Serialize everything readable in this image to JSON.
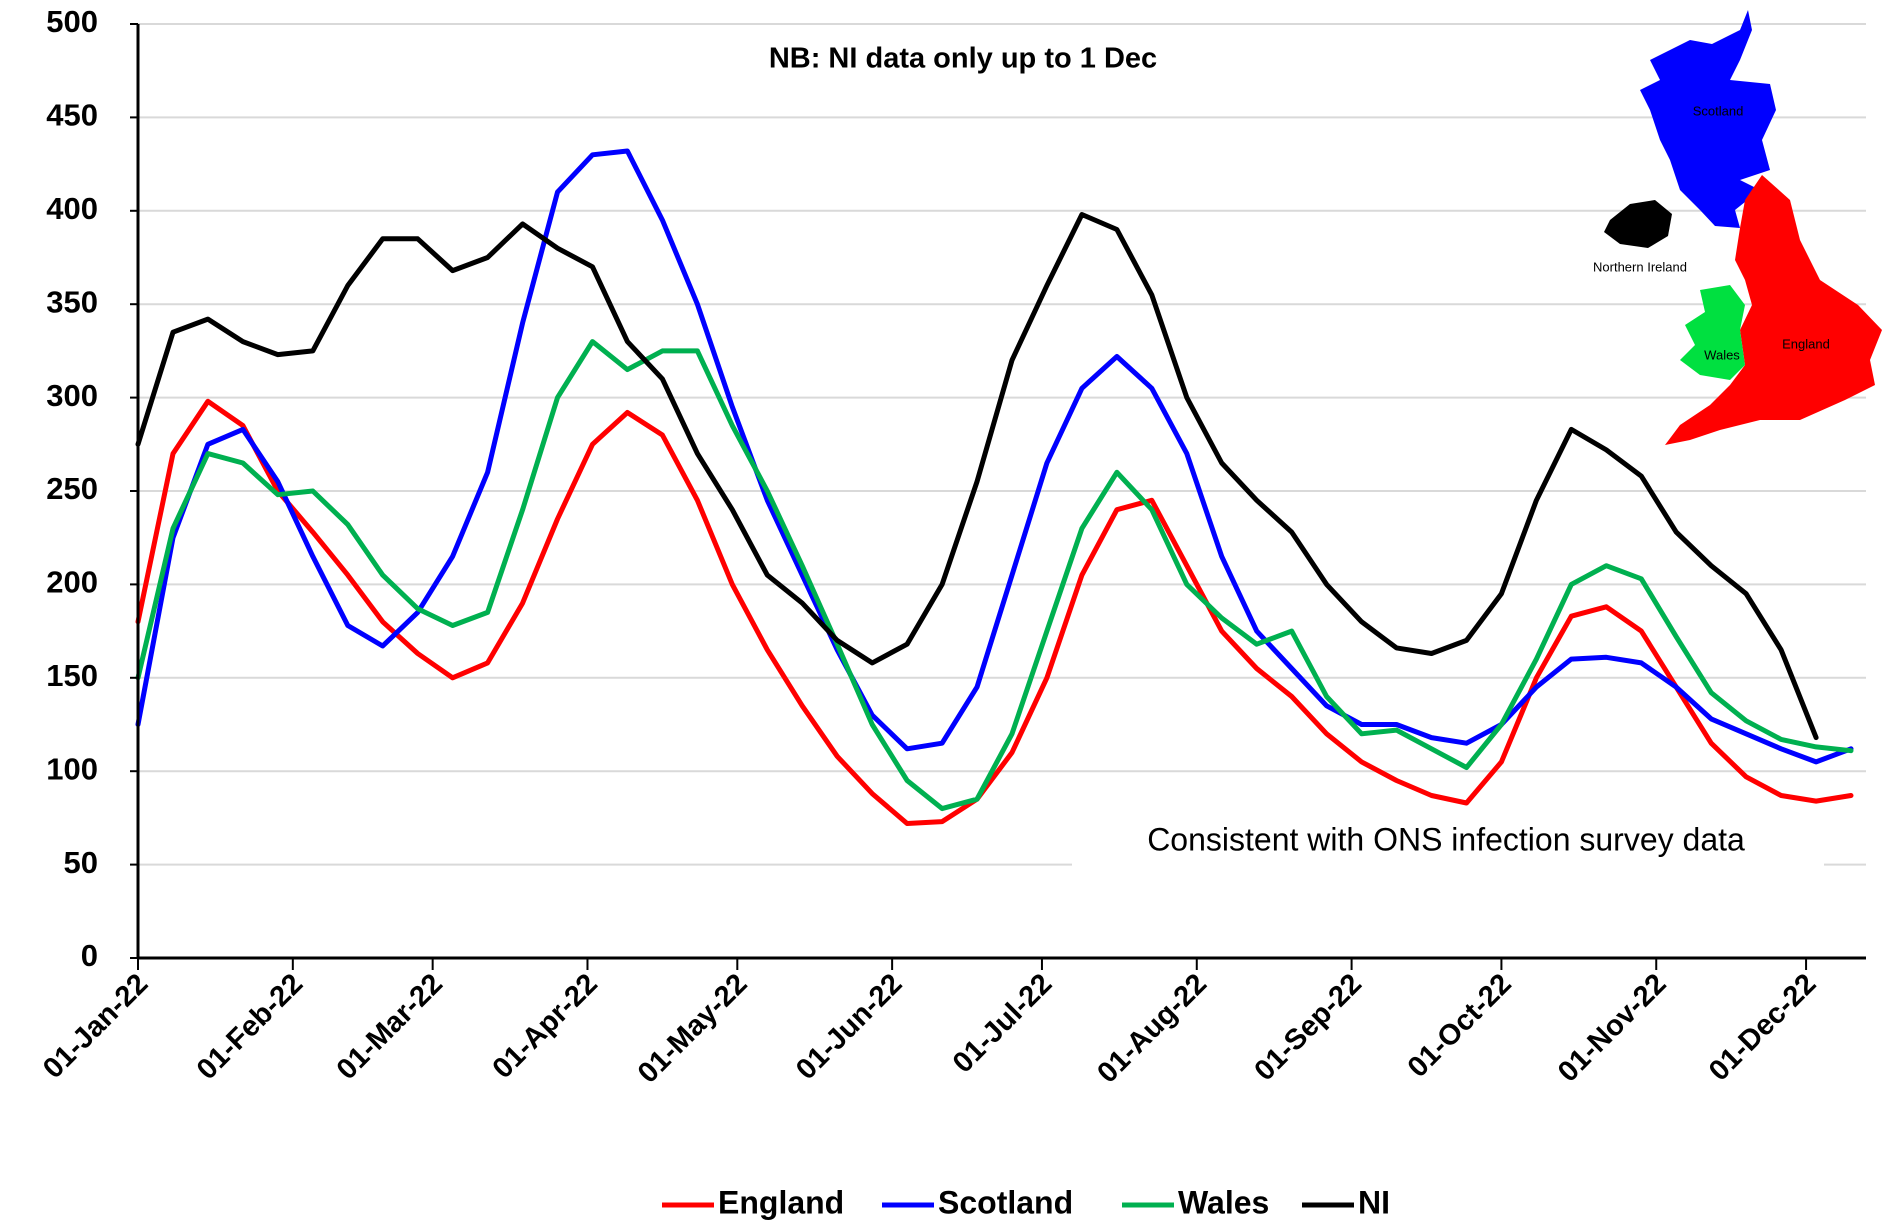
{
  "chart_data": {
    "type": "line",
    "annotations": [
      "NB: NI data only up to 1 Dec",
      "Consistent with ONS infection survey data"
    ],
    "map_labels": [
      "Scotland",
      "Northern Ireland",
      "Wales",
      "England"
    ],
    "x": [
      "2022-01-01",
      "2022-01-08",
      "2022-01-15",
      "2022-01-22",
      "2022-01-29",
      "2022-02-05",
      "2022-02-12",
      "2022-02-19",
      "2022-02-26",
      "2022-03-05",
      "2022-03-12",
      "2022-03-19",
      "2022-03-26",
      "2022-04-02",
      "2022-04-09",
      "2022-04-16",
      "2022-04-23",
      "2022-04-30",
      "2022-05-07",
      "2022-05-14",
      "2022-05-21",
      "2022-05-28",
      "2022-06-04",
      "2022-06-11",
      "2022-06-18",
      "2022-06-25",
      "2022-07-02",
      "2022-07-09",
      "2022-07-16",
      "2022-07-23",
      "2022-07-30",
      "2022-08-06",
      "2022-08-13",
      "2022-08-20",
      "2022-08-27",
      "2022-09-03",
      "2022-09-10",
      "2022-09-17",
      "2022-09-24",
      "2022-10-01",
      "2022-10-08",
      "2022-10-15",
      "2022-10-22",
      "2022-10-29",
      "2022-11-05",
      "2022-11-12",
      "2022-11-19",
      "2022-11-26",
      "2022-12-03",
      "2022-12-10"
    ],
    "series": [
      {
        "name": "England",
        "color": "#ff0000",
        "values": [
          180,
          270,
          298,
          285,
          250,
          228,
          205,
          180,
          163,
          150,
          158,
          190,
          235,
          275,
          292,
          280,
          245,
          200,
          165,
          135,
          108,
          88,
          72,
          73,
          85,
          110,
          150,
          205,
          240,
          245,
          210,
          175,
          155,
          140,
          120,
          105,
          95,
          87,
          83,
          105,
          150,
          183,
          188,
          175,
          145,
          115,
          97,
          87,
          84,
          87
        ]
      },
      {
        "name": "Scotland",
        "color": "#0000ff",
        "values": [
          125,
          225,
          275,
          283,
          255,
          215,
          178,
          167,
          185,
          215,
          260,
          340,
          410,
          430,
          432,
          395,
          350,
          295,
          245,
          205,
          165,
          130,
          112,
          115,
          145,
          205,
          265,
          305,
          322,
          305,
          270,
          215,
          175,
          155,
          135,
          125,
          125,
          118,
          115,
          125,
          145,
          160,
          161,
          158,
          145,
          128,
          120,
          112,
          105,
          112
        ]
      },
      {
        "name": "Wales",
        "color": "#00b050",
        "values": [
          150,
          230,
          270,
          265,
          248,
          250,
          232,
          205,
          187,
          178,
          185,
          240,
          300,
          330,
          315,
          325,
          325,
          285,
          250,
          210,
          168,
          125,
          95,
          80,
          85,
          120,
          175,
          230,
          260,
          240,
          200,
          182,
          168,
          175,
          140,
          120,
          122,
          112,
          102,
          125,
          160,
          200,
          210,
          203,
          172,
          142,
          127,
          117,
          113,
          111
        ]
      },
      {
        "name": "NI",
        "color": "#000000",
        "values": [
          275,
          335,
          342,
          330,
          323,
          325,
          360,
          385,
          385,
          368,
          375,
          393,
          380,
          370,
          330,
          310,
          270,
          240,
          205,
          190,
          170,
          158,
          168,
          200,
          255,
          320,
          360,
          398,
          390,
          355,
          300,
          265,
          245,
          228,
          200,
          180,
          166,
          163,
          170,
          195,
          245,
          283,
          272,
          258,
          228,
          210,
          195,
          165,
          118,
          null
        ]
      }
    ],
    "xlim": [
      "2022-01-01",
      "2022-12-13"
    ],
    "xticks": [
      {
        "value": "2022-01-01",
        "label": "01-Jan-22"
      },
      {
        "value": "2022-02-01",
        "label": "01-Feb-22"
      },
      {
        "value": "2022-03-01",
        "label": "01-Mar-22"
      },
      {
        "value": "2022-04-01",
        "label": "01-Apr-22"
      },
      {
        "value": "2022-05-01",
        "label": "01-May-22"
      },
      {
        "value": "2022-06-01",
        "label": "01-Jun-22"
      },
      {
        "value": "2022-07-01",
        "label": "01-Jul-22"
      },
      {
        "value": "2022-08-01",
        "label": "01-Aug-22"
      },
      {
        "value": "2022-09-01",
        "label": "01-Sep-22"
      },
      {
        "value": "2022-10-01",
        "label": "01-Oct-22"
      },
      {
        "value": "2022-11-01",
        "label": "01-Nov-22"
      },
      {
        "value": "2022-12-01",
        "label": "01-Dec-22"
      }
    ],
    "ylim": [
      0,
      500
    ],
    "yticks": [
      0,
      50,
      100,
      150,
      200,
      250,
      300,
      350,
      400,
      450,
      500
    ],
    "grid": true,
    "legend": "bottom"
  }
}
